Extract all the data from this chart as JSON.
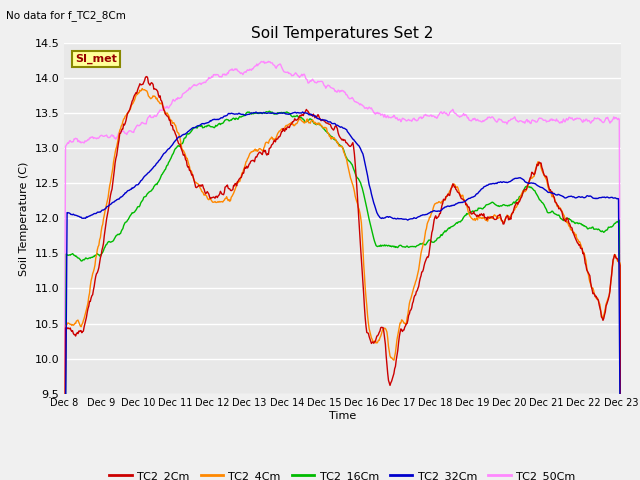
{
  "title": "Soil Temperatures Set 2",
  "subtitle": "No data for f_TC2_8Cm",
  "ylabel": "Soil Temperature (C)",
  "xlabel": "Time",
  "xlabels": [
    "Dec 8",
    "Dec 9",
    "Dec 10",
    "Dec 11",
    "Dec 12",
    "Dec 13",
    "Dec 14",
    "Dec 15",
    "Dec 16",
    "Dec 17",
    "Dec 18",
    "Dec 19",
    "Dec 20",
    "Dec 21",
    "Dec 22",
    "Dec 23"
  ],
  "ylim": [
    9.5,
    14.5
  ],
  "fig_bg": "#f0f0f0",
  "plot_bg": "#e8e8e8",
  "grid_color": "#ffffff",
  "legend_label": "SI_met",
  "series_colors": {
    "TC2_2Cm": "#cc0000",
    "TC2_4Cm": "#ff8800",
    "TC2_16Cm": "#00bb00",
    "TC2_32Cm": "#0000cc",
    "TC2_50Cm": "#ff88ff"
  }
}
